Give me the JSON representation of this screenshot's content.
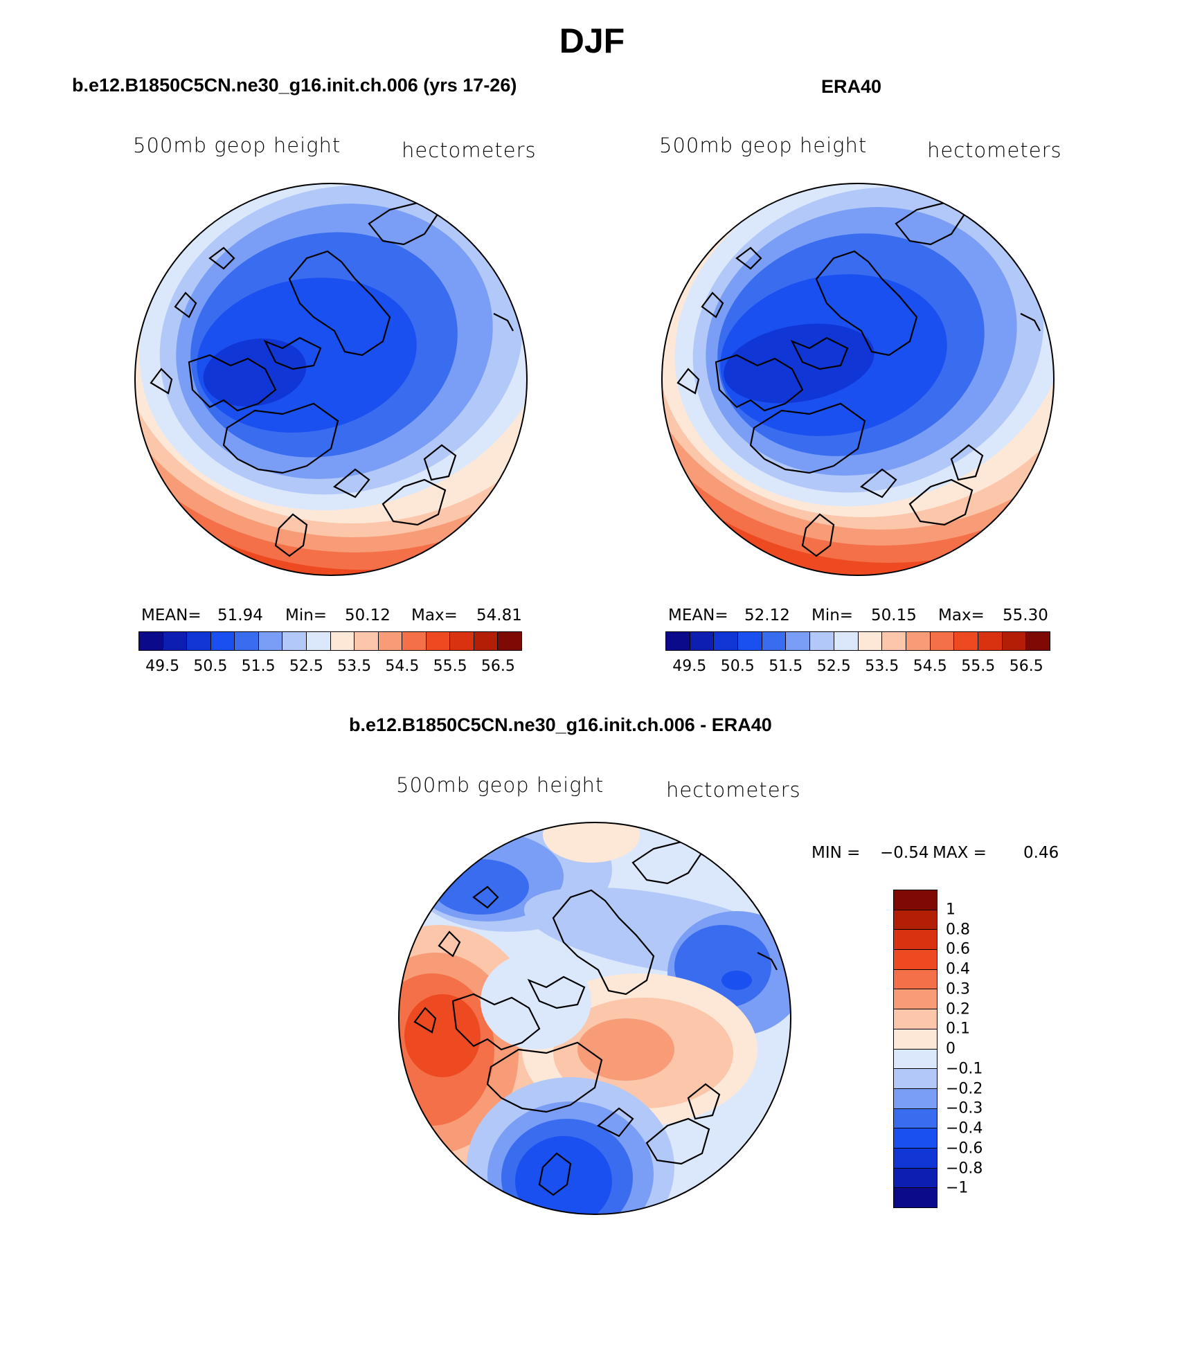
{
  "title": "DJF",
  "palette": [
    "#0a0a8a",
    "#0c1fb0",
    "#1036d6",
    "#1a4ff0",
    "#3a6cf0",
    "#7a9ef5",
    "#b2c8f8",
    "#dbe8fb",
    "#fde8d8",
    "#fbc6aa",
    "#f89c78",
    "#f47048",
    "#ee4a22",
    "#d83210",
    "#b21e06",
    "#7e0a04"
  ],
  "diff_palette": [
    "#0a0a8a",
    "#0c1fb0",
    "#1036d6",
    "#1a4ff0",
    "#3a6cf0",
    "#7a9ef5",
    "#b2c8f8",
    "#dbe8fb",
    "#fde8d8",
    "#fbc6aa",
    "#f89c78",
    "#f47048",
    "#ee4a22",
    "#d83210",
    "#b21e06",
    "#7e0a04"
  ],
  "panels": [
    {
      "title": "b.e12.B1850C5CN.ne30_g16.init.ch.006 (yrs 17-26)",
      "left_label": "500mb geop height",
      "right_label": "hectometers",
      "mean_label": "MEAN=",
      "mean": "51.94",
      "min_label": "Min=",
      "min": "50.12",
      "max_label": "Max=",
      "max": "54.81",
      "ticks": [
        "49.5",
        "50.5",
        "51.5",
        "52.5",
        "53.5",
        "54.5",
        "55.5",
        "56.5"
      ]
    },
    {
      "title": "ERA40",
      "left_label": "500mb geop height",
      "right_label": "hectometers",
      "mean_label": "MEAN=",
      "mean": "52.12",
      "min_label": "Min=",
      "min": "50.15",
      "max_label": "Max=",
      "max": "55.30",
      "ticks": [
        "49.5",
        "50.5",
        "51.5",
        "52.5",
        "53.5",
        "54.5",
        "55.5",
        "56.5"
      ]
    }
  ],
  "diff": {
    "title": "b.e12.B1850C5CN.ne30_g16.init.ch.006 - ERA40",
    "left_label": "500mb geop height",
    "right_label": "hectometers",
    "min_label": "MIN =",
    "min": "−0.54",
    "max_label": "MAX =",
    "max": "0.46",
    "ticks": [
      "1",
      "0.8",
      "0.6",
      "0.4",
      "0.3",
      "0.2",
      "0.1",
      "0",
      "−0.1",
      "−0.2",
      "−0.3",
      "−0.4",
      "−0.6",
      "−0.8",
      "−1"
    ]
  }
}
